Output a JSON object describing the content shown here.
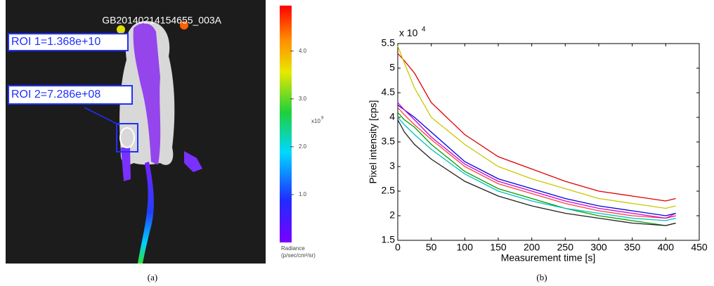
{
  "panel_a": {
    "image_id": "GB20140214154655_003A",
    "roi_labels": [
      "ROI 1=1.368e+10",
      "ROI 2=7.286e+08"
    ],
    "colorbar": {
      "lim": [
        0,
        4.95
      ],
      "ticks": [
        {
          "value": 1,
          "label": "1.0"
        },
        {
          "value": 2,
          "label": "2.0"
        },
        {
          "value": 3,
          "label": "3.0"
        },
        {
          "value": 4,
          "label": "4.0"
        }
      ],
      "multiplier": {
        "base": "x10",
        "exponent": "9"
      },
      "label": "Radiance",
      "unit": "(p/sec/cm²/sr)"
    },
    "caption": "(a)"
  },
  "chart_data": {
    "type": "line",
    "caption": "(b)",
    "x_label": "Measurement time [s]",
    "y_label": "Pixel intensity [cps]",
    "y_multiplier": {
      "base": "x 10",
      "exponent": "4"
    },
    "x": [
      0,
      10,
      25,
      50,
      100,
      150,
      200,
      250,
      300,
      350,
      400,
      415
    ],
    "xlim": [
      0,
      450
    ],
    "xticks": [
      0,
      50,
      100,
      150,
      200,
      250,
      300,
      350,
      400,
      450
    ],
    "ylim": [
      1.5,
      5.5
    ],
    "yticks": [
      1.5,
      2,
      2.5,
      3,
      3.5,
      4,
      4.5,
      5,
      5.5
    ],
    "series": [
      {
        "color": "#e00000",
        "values": [
          5.3,
          5.15,
          4.9,
          4.3,
          3.65,
          3.2,
          2.95,
          2.7,
          2.5,
          2.4,
          2.3,
          2.35
        ]
      },
      {
        "color": "#c8c800",
        "values": [
          5.45,
          5.1,
          4.6,
          4.0,
          3.45,
          3.0,
          2.75,
          2.55,
          2.35,
          2.25,
          2.15,
          2.2
        ]
      },
      {
        "color": "#ff4040",
        "values": [
          4.2,
          4.05,
          3.85,
          3.55,
          3.0,
          2.65,
          2.45,
          2.25,
          2.1,
          2.0,
          1.95,
          2.05
        ]
      },
      {
        "color": "#0000e0",
        "values": [
          4.25,
          4.15,
          4.0,
          3.7,
          3.1,
          2.75,
          2.55,
          2.35,
          2.2,
          2.1,
          2.0,
          2.05
        ]
      },
      {
        "color": "#d000d0",
        "values": [
          4.3,
          4.15,
          3.95,
          3.6,
          3.05,
          2.7,
          2.5,
          2.3,
          2.15,
          2.05,
          1.95,
          2.0
        ]
      },
      {
        "color": "#00a000",
        "values": [
          4.1,
          3.95,
          3.8,
          3.45,
          2.9,
          2.55,
          2.35,
          2.15,
          2.0,
          1.9,
          1.8,
          1.85
        ]
      },
      {
        "color": "#00c0c0",
        "values": [
          4.0,
          3.85,
          3.65,
          3.35,
          2.85,
          2.5,
          2.3,
          2.15,
          2.05,
          1.95,
          1.9,
          1.95
        ]
      },
      {
        "color": "#202020",
        "values": [
          3.95,
          3.7,
          3.45,
          3.15,
          2.7,
          2.4,
          2.2,
          2.05,
          1.95,
          1.85,
          1.8,
          1.85
        ]
      }
    ]
  }
}
